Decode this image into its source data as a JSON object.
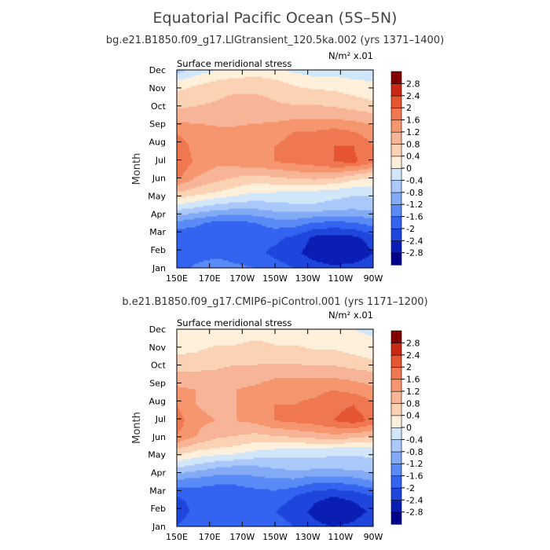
{
  "main_title": "Equatorial Pacific Ocean (5S–5N)",
  "colors": [
    "#00008b",
    "#0a1eb4",
    "#1e46dc",
    "#3264f0",
    "#5a8af5",
    "#82aaf5",
    "#aac8fa",
    "#d2e6fa",
    "#fff0dc",
    "#fcd2b4",
    "#f8b496",
    "#f5966e",
    "#f07850",
    "#e65532",
    "#c82814",
    "#820000"
  ],
  "chart_data": [
    {
      "type": "heatmap",
      "title": "bg.e21.B1850.f09_g17.LIGtransient_120.5ka.002 (yrs 1371–1400)",
      "left_label": "Surface meridional stress",
      "units_label": "N/m² x.01",
      "ylabel": "Month",
      "xlabel": "",
      "x_ticks": [
        "150E",
        "170E",
        "170W",
        "150W",
        "130W",
        "110W",
        "90W"
      ],
      "y_ticks": [
        "Jan",
        "Feb",
        "Mar",
        "Apr",
        "May",
        "Jun",
        "Jul",
        "Aug",
        "Sep",
        "Oct",
        "Nov",
        "Dec"
      ],
      "x_range": [
        "150E",
        "90W"
      ],
      "y_range": [
        "Jan",
        "Dec"
      ],
      "colorbar_levels": [
        "-2.8",
        "-2.4",
        "-2",
        "-1.6",
        "-1.2",
        "-0.8",
        "-0.4",
        "0",
        "0.4",
        "0.8",
        "1.2",
        "1.6",
        "2",
        "2.4",
        "2.8"
      ],
      "grid": [
        [
          -1.8,
          -1.5,
          -1.4,
          -1.5,
          -1.6,
          -1.8,
          -2.0,
          -2.2,
          -2.3,
          -2.2,
          -2.0
        ],
        [
          -2.0,
          -1.8,
          -1.7,
          -1.8,
          -1.9,
          -2.1,
          -2.3,
          -2.6,
          -2.8,
          -2.8,
          -2.4
        ],
        [
          -2.0,
          -1.9,
          -2.0,
          -2.0,
          -1.9,
          -1.9,
          -2.1,
          -2.5,
          -2.6,
          -2.5,
          -2.2
        ],
        [
          -1.3,
          -1.5,
          -1.7,
          -1.7,
          -1.6,
          -1.4,
          -1.4,
          -1.6,
          -1.7,
          -1.6,
          -1.4
        ],
        [
          -0.2,
          -0.4,
          -0.6,
          -0.7,
          -0.7,
          -0.6,
          -0.5,
          -0.5,
          -0.6,
          -0.7,
          -0.6
        ],
        [
          0.8,
          0.6,
          0.4,
          0.2,
          0.0,
          0.0,
          -0.1,
          -0.1,
          -0.2,
          -0.3,
          -0.3
        ],
        [
          1.7,
          1.2,
          1.0,
          0.8,
          0.7,
          0.8,
          0.9,
          1.0,
          0.9,
          0.6,
          0.4
        ],
        [
          2.0,
          1.5,
          1.3,
          1.4,
          1.5,
          1.6,
          1.7,
          1.8,
          2.0,
          2.1,
          1.7
        ],
        [
          1.9,
          1.4,
          1.3,
          1.4,
          1.5,
          1.6,
          1.7,
          1.7,
          2.0,
          2.0,
          1.6
        ],
        [
          1.5,
          1.4,
          1.3,
          1.3,
          1.4,
          1.5,
          1.6,
          1.6,
          1.7,
          1.6,
          1.4
        ],
        [
          1.0,
          1.0,
          1.0,
          1.0,
          1.0,
          1.0,
          1.1,
          1.1,
          1.1,
          1.0,
          0.9
        ],
        [
          0.6,
          0.7,
          0.8,
          0.9,
          0.9,
          0.8,
          0.7,
          0.7,
          0.6,
          0.5,
          0.4
        ],
        [
          0.3,
          0.4,
          0.6,
          0.7,
          0.7,
          0.6,
          0.4,
          0.3,
          0.3,
          0.2,
          0.1
        ],
        [
          -0.6,
          -0.2,
          0.0,
          0.1,
          0.2,
          0.1,
          -0.1,
          -0.2,
          -0.2,
          -0.3,
          -0.3
        ]
      ]
    },
    {
      "type": "heatmap",
      "title": "b.e21.B1850.f09_g17.CMIP6–piControl.001 (yrs 1171–1200)",
      "left_label": "Surface meridional stress",
      "units_label": "N/m² x.01",
      "ylabel": "Month",
      "xlabel": "",
      "x_ticks": [
        "150E",
        "170E",
        "170W",
        "150W",
        "130W",
        "110W",
        "90W"
      ],
      "y_ticks": [
        "Jan",
        "Feb",
        "Mar",
        "Apr",
        "May",
        "Jun",
        "Jul",
        "Aug",
        "Sep",
        "Oct",
        "Nov",
        "Dec"
      ],
      "x_range": [
        "150E",
        "90W"
      ],
      "y_range": [
        "Jan",
        "Dec"
      ],
      "colorbar_levels": [
        "-2.8",
        "-2.4",
        "-2",
        "-1.6",
        "-1.2",
        "-0.8",
        "-0.4",
        "0",
        "0.4",
        "0.8",
        "1.2",
        "1.6",
        "2",
        "2.4",
        "2.8"
      ],
      "grid": [
        [
          -2.0,
          -1.7,
          -1.6,
          -1.7,
          -1.8,
          -1.8,
          -2.0,
          -2.3,
          -2.4,
          -2.3,
          -2.0
        ],
        [
          -2.2,
          -1.9,
          -1.8,
          -1.9,
          -1.9,
          -2.0,
          -2.2,
          -2.5,
          -2.7,
          -2.6,
          -2.3
        ],
        [
          -2.0,
          -1.9,
          -1.9,
          -1.9,
          -1.8,
          -1.8,
          -2.0,
          -2.3,
          -2.4,
          -2.3,
          -2.0
        ],
        [
          -1.3,
          -1.4,
          -1.5,
          -1.5,
          -1.4,
          -1.3,
          -1.3,
          -1.5,
          -1.5,
          -1.4,
          -1.2
        ],
        [
          -0.3,
          -0.5,
          -0.7,
          -0.8,
          -0.8,
          -0.7,
          -0.6,
          -0.6,
          -0.6,
          -0.6,
          -0.5
        ],
        [
          0.7,
          0.4,
          0.3,
          0.2,
          0.0,
          -0.1,
          -0.2,
          -0.2,
          -0.3,
          -0.3,
          -0.3
        ],
        [
          1.6,
          1.2,
          0.9,
          0.8,
          0.7,
          0.8,
          0.9,
          1.0,
          1.1,
          1.0,
          0.8
        ],
        [
          1.8,
          1.3,
          1.2,
          1.2,
          1.3,
          1.6,
          1.7,
          1.8,
          2.0,
          2.2,
          1.9
        ],
        [
          1.6,
          1.2,
          1.1,
          1.2,
          1.3,
          1.6,
          1.6,
          1.7,
          1.9,
          2.0,
          1.7
        ],
        [
          1.3,
          1.2,
          1.2,
          1.2,
          1.3,
          1.5,
          1.5,
          1.5,
          1.6,
          1.5,
          1.3
        ],
        [
          0.9,
          0.9,
          0.9,
          1.0,
          1.0,
          1.1,
          1.1,
          1.1,
          1.1,
          1.0,
          0.9
        ],
        [
          0.5,
          0.5,
          0.6,
          0.7,
          0.7,
          0.7,
          0.7,
          0.6,
          0.6,
          0.5,
          0.4
        ],
        [
          0.2,
          0.3,
          0.4,
          0.4,
          0.5,
          0.4,
          0.4,
          0.3,
          0.3,
          0.2,
          0.1
        ],
        [
          0.0,
          0.1,
          0.1,
          0.1,
          0.2,
          0.2,
          0.1,
          0.1,
          0.0,
          0.0,
          -0.1
        ]
      ]
    }
  ]
}
